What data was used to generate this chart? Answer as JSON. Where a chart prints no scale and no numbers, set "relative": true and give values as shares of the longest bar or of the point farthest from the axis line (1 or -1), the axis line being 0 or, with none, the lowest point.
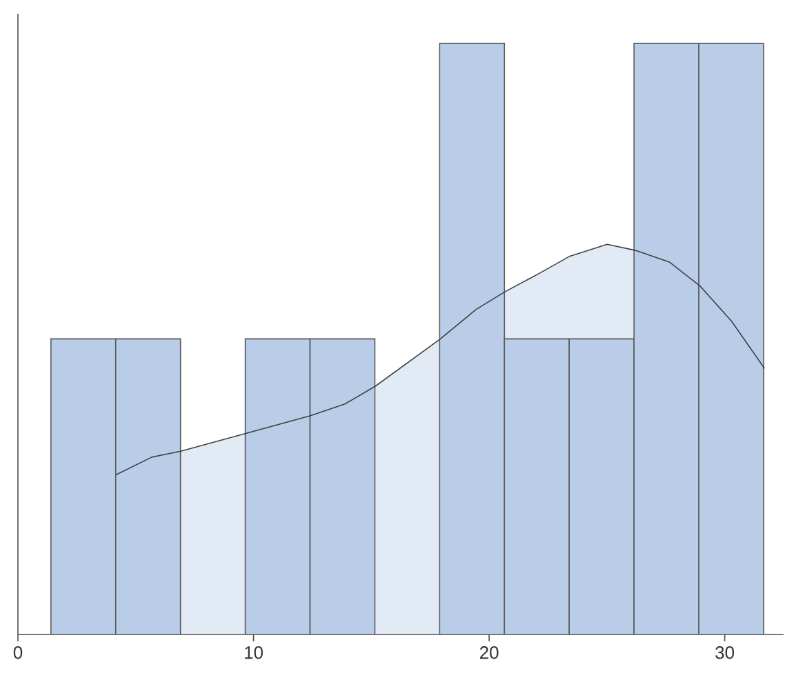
{
  "chart_data": {
    "type": "histogram",
    "relative": true,
    "bins": [
      1.4,
      4.15,
      6.9,
      9.65,
      12.4,
      15.15,
      17.9,
      20.65,
      23.4,
      26.15,
      28.9,
      31.65
    ],
    "values": [
      0.5,
      0.5,
      0,
      0.5,
      0.5,
      0,
      1,
      0.5,
      0.5,
      1,
      1
    ],
    "color": "#b9cce8",
    "series": [
      {
        "type": "area",
        "color": "#e2eaf6",
        "x": [
          4.16,
          5.68,
          6.91,
          9.67,
          12.42,
          13.88,
          15.17,
          17.93,
          19.45,
          20.68,
          22.09,
          23.43,
          25.01,
          26.19,
          27.65,
          28.94,
          30.29,
          31.69
        ],
        "values": [
          0.27,
          0.3,
          0.31,
          0.34,
          0.37,
          0.39,
          0.42,
          0.5,
          0.55,
          0.58,
          0.61,
          0.64,
          0.66,
          0.65,
          0.63,
          0.59,
          0.53,
          0.45
        ]
      }
    ],
    "xlim": [
      0,
      32.5
    ],
    "xticks": [
      0,
      10,
      20,
      30
    ]
  }
}
